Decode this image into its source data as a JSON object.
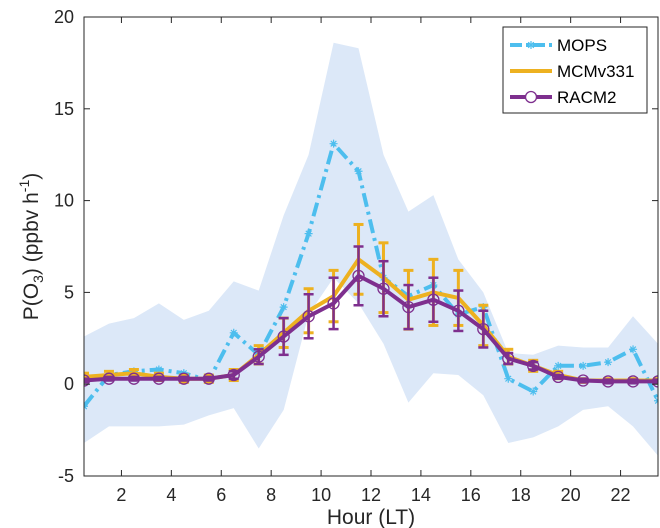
{
  "chart_data": {
    "type": "line",
    "xlabel": "Hour (LT)",
    "ylabel": "P(O₃) (ppbv h⁻¹)",
    "ylabel_parts": {
      "prefix": "P(O",
      "sub": "3",
      "mid": ") (ppbv h",
      "sup": "-1",
      "suffix": ")"
    },
    "xlim": [
      0.5,
      23.5
    ],
    "ylim": [
      -5,
      20
    ],
    "xticks": [
      2,
      4,
      6,
      8,
      10,
      12,
      14,
      16,
      18,
      20,
      22
    ],
    "yticks": [
      -5,
      0,
      5,
      10,
      15,
      20
    ],
    "grid": false,
    "legend_position": "top-right",
    "band": {
      "x": [
        0.5,
        1.5,
        2.5,
        3.5,
        4.5,
        5.5,
        6.5,
        7.5,
        8.5,
        9.5,
        10.5,
        11.5,
        12.5,
        13.5,
        14.5,
        15.5,
        16.5,
        17.5,
        18.5,
        19.5,
        20.5,
        21.5,
        22.5,
        23.5
      ],
      "upper": [
        2.6,
        3.3,
        3.6,
        4.4,
        3.5,
        4.0,
        5.6,
        5.1,
        9.2,
        12.5,
        18.6,
        18.3,
        12.5,
        9.4,
        10.3,
        6.8,
        5.0,
        1.7,
        1.6,
        2.1,
        2.0,
        2.0,
        3.7,
        2.2
      ],
      "lower": [
        -3.2,
        -2.3,
        -2.3,
        -2.3,
        -2.2,
        -1.7,
        -1.3,
        -3.5,
        -1.4,
        3.8,
        5.8,
        4.4,
        2.2,
        -1.0,
        0.6,
        0.5,
        -0.6,
        -3.2,
        -2.9,
        -2.3,
        -1.4,
        -1.2,
        -2.3,
        -3.9
      ],
      "color": "#dce8f8"
    },
    "series": [
      {
        "name": "MOPS",
        "color": "#4dbeee",
        "style": "dash-dot",
        "marker": "asterisk",
        "x": [
          0.5,
          1.5,
          2.5,
          3.5,
          4.5,
          5.5,
          6.5,
          7.5,
          8.5,
          9.5,
          10.5,
          11.5,
          12.5,
          13.5,
          14.5,
          15.5,
          16.5,
          17.5,
          18.5,
          19.5,
          20.5,
          21.5,
          22.5,
          23.5
        ],
        "values": [
          -1.2,
          0.5,
          0.7,
          0.8,
          0.6,
          0.2,
          2.8,
          1.6,
          4.2,
          8.2,
          13.1,
          11.6,
          5.8,
          4.8,
          5.4,
          3.8,
          4.2,
          0.3,
          -0.4,
          1.0,
          1.0,
          1.2,
          1.9,
          -0.9
        ]
      },
      {
        "name": "MCMv331",
        "color": "#edb120",
        "style": "solid",
        "marker": "none",
        "x": [
          0.5,
          1.5,
          2.5,
          3.5,
          4.5,
          5.5,
          6.5,
          7.5,
          8.5,
          9.5,
          10.5,
          11.5,
          12.5,
          13.5,
          14.5,
          15.5,
          16.5,
          17.5,
          18.5,
          19.5,
          20.5,
          21.5,
          22.5,
          23.5
        ],
        "values": [
          0.4,
          0.5,
          0.6,
          0.4,
          0.3,
          0.3,
          0.5,
          1.6,
          2.8,
          4.0,
          4.8,
          6.8,
          5.8,
          4.6,
          5.0,
          4.7,
          3.2,
          1.5,
          1.0,
          0.5,
          0.2,
          0.2,
          0.2,
          0.2
        ],
        "err": [
          0.2,
          0.2,
          0.2,
          0.2,
          0.2,
          0.2,
          0.3,
          0.5,
          0.8,
          1.2,
          1.4,
          1.9,
          1.9,
          1.6,
          1.8,
          1.5,
          1.1,
          0.4,
          0.3,
          0.2,
          0.1,
          0.1,
          0.1,
          0.1
        ]
      },
      {
        "name": "RACM2",
        "color": "#7e2f8e",
        "style": "solid",
        "marker": "circle",
        "x": [
          0.5,
          1.5,
          2.5,
          3.5,
          4.5,
          5.5,
          6.5,
          7.5,
          8.5,
          9.5,
          10.5,
          11.5,
          12.5,
          13.5,
          14.5,
          15.5,
          16.5,
          17.5,
          18.5,
          19.5,
          20.5,
          21.5,
          22.5,
          23.5
        ],
        "values": [
          0.2,
          0.3,
          0.3,
          0.3,
          0.3,
          0.3,
          0.5,
          1.5,
          2.6,
          3.7,
          4.4,
          5.9,
          5.2,
          4.2,
          4.6,
          4.0,
          3.0,
          1.4,
          1.0,
          0.4,
          0.2,
          0.15,
          0.15,
          0.15
        ],
        "err": [
          0.1,
          0.1,
          0.1,
          0.1,
          0.1,
          0.1,
          0.2,
          0.4,
          1.0,
          1.2,
          1.4,
          1.6,
          1.5,
          1.2,
          1.2,
          1.1,
          1.0,
          0.3,
          0.2,
          0.1,
          0.1,
          0.1,
          0.1,
          0.1
        ]
      }
    ]
  }
}
